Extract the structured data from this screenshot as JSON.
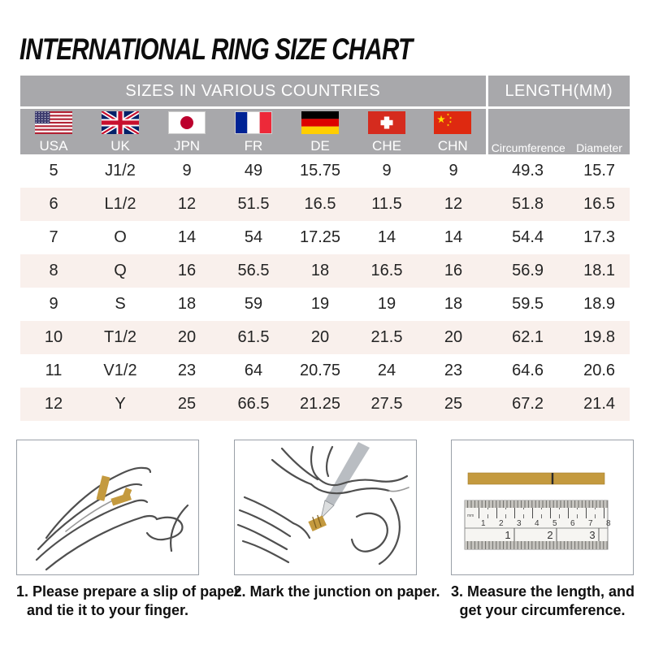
{
  "title": "INTERNATIONAL RING SIZE CHART",
  "table": {
    "group_header_sizes": "SIZES IN VARIOUS COUNTRIES",
    "group_header_length": "LENGTH(MM)",
    "countries": [
      {
        "code": "USA",
        "flag": "usa"
      },
      {
        "code": "UK",
        "flag": "uk"
      },
      {
        "code": "JPN",
        "flag": "japan"
      },
      {
        "code": "FR",
        "flag": "france"
      },
      {
        "code": "DE",
        "flag": "germany"
      },
      {
        "code": "CHE",
        "flag": "switzerland"
      },
      {
        "code": "CHN",
        "flag": "china"
      }
    ],
    "length_headers": {
      "circumference": "Circumference",
      "diameter": "Diameter"
    },
    "rows": [
      [
        "5",
        "J1/2",
        "9",
        "49",
        "15.75",
        "9",
        "9",
        "49.3",
        "15.7"
      ],
      [
        "6",
        "L1/2",
        "12",
        "51.5",
        "16.5",
        "11.5",
        "12",
        "51.8",
        "16.5"
      ],
      [
        "7",
        "O",
        "14",
        "54",
        "17.25",
        "14",
        "14",
        "54.4",
        "17.3"
      ],
      [
        "8",
        "Q",
        "16",
        "56.5",
        "18",
        "16.5",
        "16",
        "56.9",
        "18.1"
      ],
      [
        "9",
        "S",
        "18",
        "59",
        "19",
        "19",
        "18",
        "59.5",
        "18.9"
      ],
      [
        "10",
        "T1/2",
        "20",
        "61.5",
        "20",
        "21.5",
        "20",
        "62.1",
        "19.8"
      ],
      [
        "11",
        "V1/2",
        "23",
        "64",
        "20.75",
        "24",
        "23",
        "64.6",
        "20.6"
      ],
      [
        "12",
        "Y",
        "25",
        "66.5",
        "21.25",
        "27.5",
        "25",
        "67.2",
        "21.4"
      ]
    ]
  },
  "chart_data": {
    "type": "table",
    "title": "INTERNATIONAL RING SIZE CHART",
    "column_groups": [
      "SIZES IN VARIOUS COUNTRIES",
      "LENGTH(MM)"
    ],
    "columns": [
      "USA",
      "UK",
      "JPN",
      "FR",
      "DE",
      "CHE",
      "CHN",
      "Circumference",
      "Diameter"
    ],
    "rows": [
      [
        "5",
        "J1/2",
        "9",
        "49",
        "15.75",
        "9",
        "9",
        "49.3",
        "15.7"
      ],
      [
        "6",
        "L1/2",
        "12",
        "51.5",
        "16.5",
        "11.5",
        "12",
        "51.8",
        "16.5"
      ],
      [
        "7",
        "O",
        "14",
        "54",
        "17.25",
        "14",
        "14",
        "54.4",
        "17.3"
      ],
      [
        "8",
        "Q",
        "16",
        "56.5",
        "18",
        "16.5",
        "16",
        "56.9",
        "18.1"
      ],
      [
        "9",
        "S",
        "18",
        "59",
        "19",
        "19",
        "18",
        "59.5",
        "18.9"
      ],
      [
        "10",
        "T1/2",
        "20",
        "61.5",
        "20",
        "21.5",
        "20",
        "62.1",
        "19.8"
      ],
      [
        "11",
        "V1/2",
        "23",
        "64",
        "20.75",
        "24",
        "23",
        "64.6",
        "20.6"
      ],
      [
        "12",
        "Y",
        "25",
        "66.5",
        "21.25",
        "27.5",
        "25",
        "67.2",
        "21.4"
      ]
    ]
  },
  "steps": [
    {
      "caption_line1": "1. Please prepare a slip of paper",
      "caption_line2": "and tie it to your finger.",
      "illustration": "hand-with-paper-strip"
    },
    {
      "caption_line1": "2. Mark the junction on paper.",
      "caption_line2": "",
      "illustration": "pen-marking-junction"
    },
    {
      "caption_line1": "3. Measure the length, and",
      "caption_line2": "get your circumference.",
      "illustration": "paper-strip-and-ruler",
      "ruler_cm_numbers": [
        "1",
        "2",
        "3",
        "4",
        "5",
        "6",
        "7",
        "8"
      ],
      "ruler_inch_numbers": [
        "1",
        "2",
        "3"
      ],
      "ruler_unit_label": "mm"
    }
  ],
  "colors": {
    "header_gray": "#a8a8ab",
    "row_alt_pink": "#f9f0ec",
    "paper_strip_gold": "#c49a3f",
    "title_black": "#0d0d0d"
  }
}
